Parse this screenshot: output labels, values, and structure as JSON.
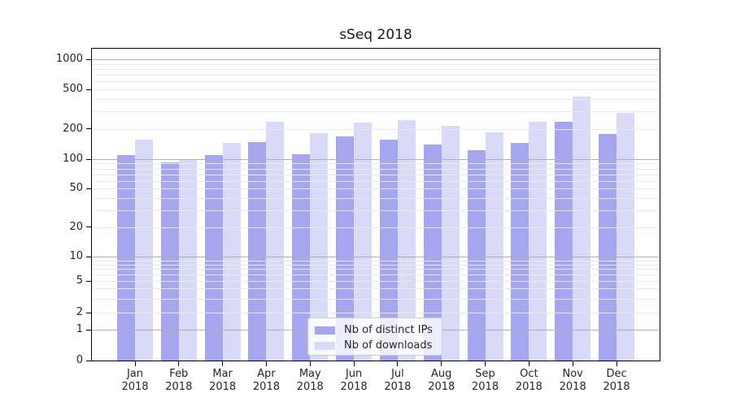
{
  "chart_data": {
    "type": "bar",
    "title": "sSeq 2018",
    "categories": [
      "Jan",
      "Feb",
      "Mar",
      "Apr",
      "May",
      "Jun",
      "Jul",
      "Aug",
      "Sep",
      "Oct",
      "Nov",
      "Dec"
    ],
    "x_year_label": "2018",
    "series": [
      {
        "name": "Nb of distinct IPs",
        "color": "#a5a5f0",
        "values": [
          110,
          93,
          110,
          148,
          112,
          168,
          158,
          140,
          122,
          145,
          235,
          178
        ]
      },
      {
        "name": "Nb of downloads",
        "color": "#d9d9f8",
        "values": [
          156,
          100,
          146,
          235,
          182,
          232,
          245,
          215,
          184,
          235,
          420,
          288
        ]
      }
    ],
    "yaxis": {
      "scale": "symlog",
      "ticks": [
        0,
        1,
        2,
        5,
        10,
        20,
        50,
        100,
        200,
        500,
        1000
      ],
      "major_gridlines": [
        1,
        10,
        100,
        1000
      ],
      "ylim": [
        0,
        1300
      ],
      "grid": true,
      "grid_above_bars": true
    },
    "legend": {
      "position": "lower-center"
    }
  },
  "colors": {
    "bar_distinct_ips": "#a5a5f0",
    "bar_downloads": "#d9d9f8",
    "major_grid": "#b0b0b0",
    "minor_grid": "#e9e9e9",
    "spine": "#000000",
    "text": "#262626"
  }
}
